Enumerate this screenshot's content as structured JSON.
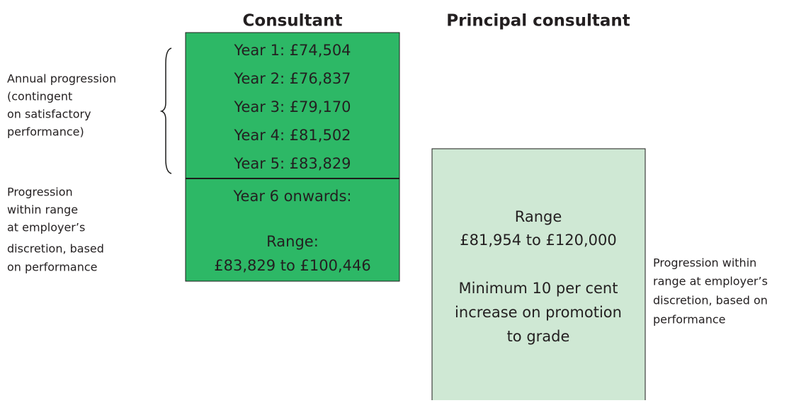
{
  "columns": [
    {
      "title": "Consultant",
      "annual_rows": [
        "Year 1: £74,504",
        "Year 2: £76,837",
        "Year 3: £79,170",
        "Year 4: £81,502",
        "Year 5: £83,829"
      ],
      "range_lines": [
        "Year 6 onwards:",
        "Range:",
        "£83,829 to £100,446"
      ]
    },
    {
      "title": "Principal consultant",
      "range_lines": [
        "Range",
        "£81,954 to £120,000",
        "Minimum 10 per cent",
        "increase on promotion",
        "to grade"
      ]
    }
  ],
  "notes": {
    "annual": [
      "Annual progression",
      "(contingent",
      "on satisfactory",
      "performance)"
    ],
    "consultant_range": [
      "Progression",
      "within range",
      "at employer’s",
      "discretion, based",
      "on performance"
    ],
    "principal_range": [
      "Progression within",
      "range at employer’s",
      "discretion, based on",
      "performance"
    ]
  }
}
